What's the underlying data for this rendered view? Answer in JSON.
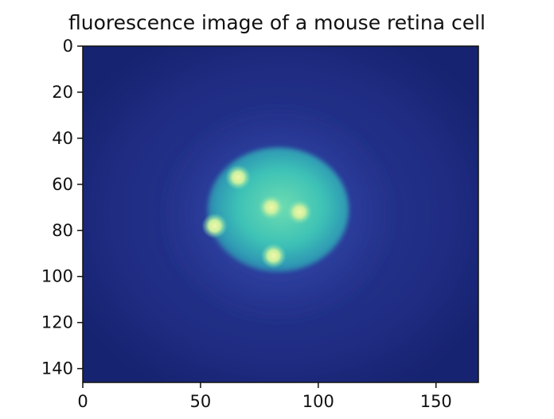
{
  "figure": {
    "title": "fluorescence image of a mouse retina cell"
  },
  "chart_data": {
    "type": "heatmap",
    "title": "fluorescence image of a mouse retina cell",
    "xlabel": "",
    "ylabel": "",
    "image_shape": [
      146,
      168
    ],
    "xlim": [
      0,
      168
    ],
    "ylim": [
      146,
      0
    ],
    "x_ticks": [
      0,
      50,
      100,
      150
    ],
    "x_tick_labels": [
      "0",
      "50",
      "100",
      "150"
    ],
    "y_ticks": [
      0,
      20,
      40,
      60,
      80,
      100,
      120,
      140
    ],
    "y_tick_labels": [
      "0",
      "20",
      "40",
      "60",
      "80",
      "100",
      "120",
      "140"
    ],
    "grid": false,
    "colormap": [
      "#1a2a78",
      "#2a3f9a",
      "#2f8fb0",
      "#3fc0b0",
      "#c8f0a0"
    ],
    "nucleus": {
      "cx": 83,
      "cy": 71,
      "rx": 30,
      "ry": 27
    },
    "bright_spots": [
      {
        "x": 66,
        "y": 57
      },
      {
        "x": 80,
        "y": 70
      },
      {
        "x": 92,
        "y": 72
      },
      {
        "x": 56,
        "y": 78
      },
      {
        "x": 81,
        "y": 91
      }
    ]
  }
}
